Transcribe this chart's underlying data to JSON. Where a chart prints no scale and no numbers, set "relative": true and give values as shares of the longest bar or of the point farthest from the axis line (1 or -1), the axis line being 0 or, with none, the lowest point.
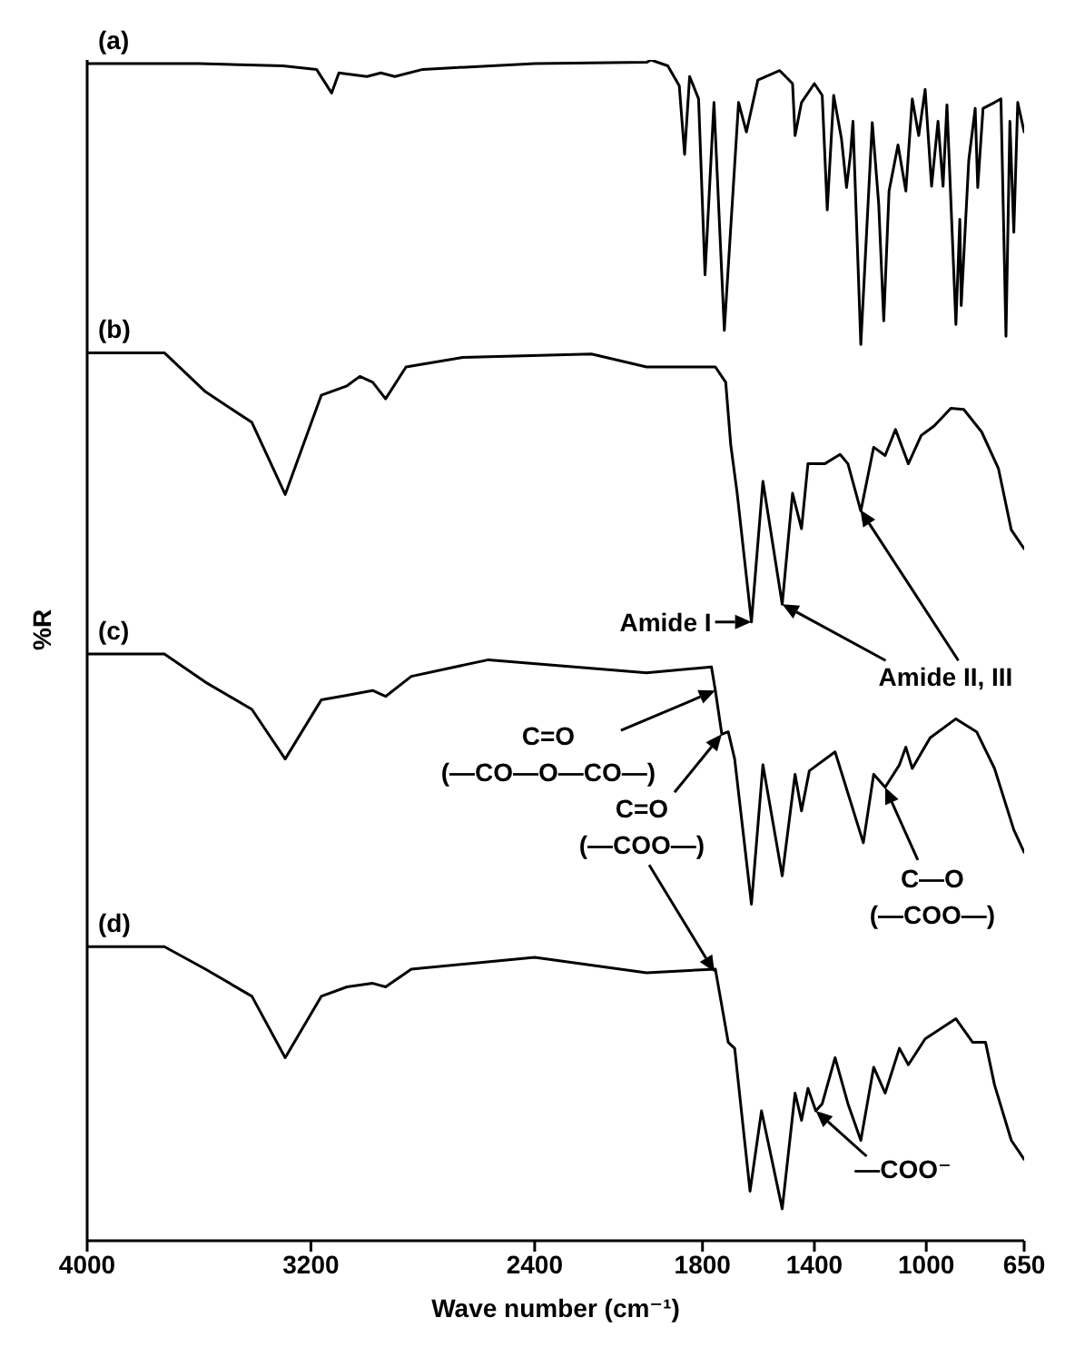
{
  "chart_data": {
    "type": "line",
    "relative": true,
    "xlabel": "Wave number (cm⁻¹)",
    "ylabel": "%R",
    "xlim": [
      4000,
      650
    ],
    "xticks": [
      4000,
      3200,
      2400,
      1800,
      1400,
      1000,
      650
    ],
    "series": [
      {
        "name": "(a)",
        "color": "#000000",
        "x": [
          4000,
          3600,
          3300,
          3180,
          3126,
          3100,
          3000,
          2950,
          2900,
          2800,
          2400,
          2000,
          1984,
          1924,
          1883,
          1864,
          1846,
          1814,
          1791,
          1759,
          1722,
          1671,
          1643,
          1602,
          1524,
          1478,
          1469,
          1446,
          1400,
          1372,
          1354,
          1331,
          1303,
          1285,
          1271,
          1262,
          1234,
          1193,
          1170,
          1152,
          1133,
          1101,
          1073,
          1050,
          1027,
          1004,
          981,
          958,
          940,
          926,
          894,
          880,
          875,
          848,
          825,
          816,
          797,
          756,
          733,
          715,
          701,
          687,
          673,
          650
        ],
        "values": [
          0.997,
          0.997,
          0.995,
          0.992,
          0.972,
          0.989,
          0.986,
          0.989,
          0.986,
          0.992,
          0.997,
          0.998,
          1,
          0.995,
          0.978,
          0.92,
          0.986,
          0.967,
          0.818,
          0.964,
          0.771,
          0.964,
          0.939,
          0.983,
          0.991,
          0.98,
          0.936,
          0.964,
          0.98,
          0.97,
          0.873,
          0.97,
          0.933,
          0.892,
          0.92,
          0.948,
          0.759,
          0.947,
          0.878,
          0.779,
          0.889,
          0.928,
          0.889,
          0.967,
          0.936,
          0.975,
          0.893,
          0.948,
          0.893,
          0.962,
          0.776,
          0.865,
          0.792,
          0.915,
          0.959,
          0.892,
          0.959,
          0.964,
          0.967,
          0.766,
          0.948,
          0.854,
          0.964,
          0.939
        ]
      },
      {
        "name": "(b)",
        "color": "#000000",
        "x": [
          4000,
          3724,
          3577,
          3411,
          3292,
          3163,
          3071,
          3025,
          2979,
          2933,
          2860,
          2657,
          2197,
          2000,
          1754,
          1717,
          1699,
          1676,
          1625,
          1584,
          1515,
          1478,
          1446,
          1423,
          1363,
          1308,
          1280,
          1234,
          1188,
          1147,
          1110,
          1064,
          1018,
          972,
          912,
          866,
          802,
          742,
          696,
          650
        ],
        "values": [
          0.752,
          0.752,
          0.719,
          0.693,
          0.632,
          0.716,
          0.724,
          0.732,
          0.727,
          0.713,
          0.74,
          0.748,
          0.751,
          0.74,
          0.74,
          0.727,
          0.674,
          0.633,
          0.524,
          0.643,
          0.539,
          0.633,
          0.603,
          0.658,
          0.658,
          0.666,
          0.658,
          0.618,
          0.672,
          0.665,
          0.687,
          0.658,
          0.682,
          0.69,
          0.705,
          0.704,
          0.685,
          0.654,
          0.602,
          0.586
        ]
      },
      {
        "name": "(c)",
        "color": "#000000",
        "x": [
          4000,
          3724,
          3577,
          3411,
          3292,
          3163,
          3071,
          2979,
          2933,
          2841,
          2565,
          2000,
          1768,
          1754,
          1731,
          1708,
          1685,
          1625,
          1584,
          1515,
          1469,
          1446,
          1418,
          1326,
          1225,
          1188,
          1147,
          1096,
          1073,
          1050,
          986,
          894,
          820,
          756,
          687,
          650
        ],
        "values": [
          0.497,
          0.497,
          0.473,
          0.45,
          0.408,
          0.458,
          0.462,
          0.466,
          0.461,
          0.478,
          0.492,
          0.481,
          0.486,
          0.466,
          0.429,
          0.431,
          0.408,
          0.285,
          0.403,
          0.309,
          0.395,
          0.364,
          0.398,
          0.414,
          0.337,
          0.395,
          0.384,
          0.403,
          0.418,
          0.4,
          0.426,
          0.442,
          0.431,
          0.4,
          0.348,
          0.329
        ]
      },
      {
        "name": "(d)",
        "color": "#000000",
        "x": [
          4000,
          3724,
          3577,
          3411,
          3292,
          3163,
          3071,
          2979,
          2933,
          2841,
          2400,
          2000,
          1754,
          1731,
          1708,
          1685,
          1630,
          1589,
          1515,
          1469,
          1446,
          1423,
          1395,
          1372,
          1326,
          1280,
          1234,
          1188,
          1147,
          1096,
          1064,
          1004,
          894,
          834,
          788,
          756,
          696,
          650
        ],
        "values": [
          0.249,
          0.249,
          0.23,
          0.207,
          0.155,
          0.207,
          0.215,
          0.218,
          0.215,
          0.23,
          0.24,
          0.227,
          0.23,
          0.199,
          0.168,
          0.163,
          0.042,
          0.11,
          0.027,
          0.125,
          0.102,
          0.129,
          0.11,
          0.116,
          0.155,
          0.116,
          0.085,
          0.147,
          0.125,
          0.163,
          0.149,
          0.171,
          0.188,
          0.168,
          0.168,
          0.132,
          0.085,
          0.069
        ]
      }
    ],
    "annotations": [
      {
        "text": "Amide I",
        "x": 1625,
        "y": 0.524
      },
      {
        "text": "Amide II, III",
        "x": 1515,
        "y": 0.539
      },
      {
        "text": "C=O\n(—CO—O—CO—)",
        "x": 1754,
        "y": 0.466
      },
      {
        "text": "C=O\n(—COO—)",
        "x": 1731,
        "y": 0.429
      },
      {
        "text": "C—O\n(—COO—)",
        "x": 1147,
        "y": 0.384
      },
      {
        "text": "—COO⁻",
        "x": 1395,
        "y": 0.11
      }
    ]
  }
}
